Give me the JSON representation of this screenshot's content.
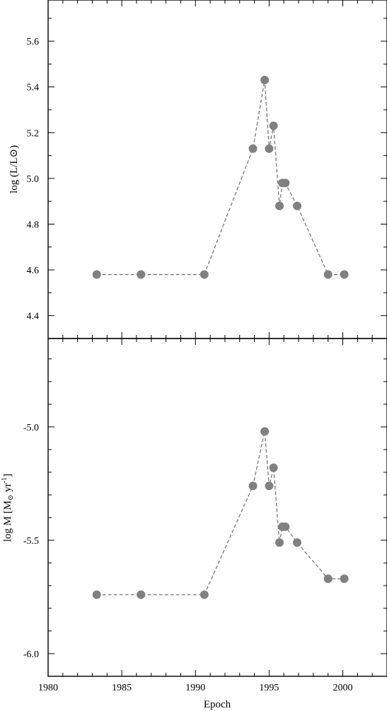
{
  "chart_data": [
    {
      "type": "scatter",
      "panel": "top",
      "x": [
        1983.3,
        1986.3,
        1990.6,
        1993.9,
        1994.7,
        1995.0,
        1995.3,
        1995.7,
        1995.9,
        1996.1,
        1996.9,
        1999.0,
        2000.1
      ],
      "series": [
        {
          "values": [
            4.58,
            4.58,
            4.58,
            5.13,
            5.43,
            5.13,
            5.23,
            4.88,
            4.98,
            4.98,
            4.88,
            4.58,
            4.58
          ]
        }
      ],
      "line_order": [
        0,
        1,
        2,
        3,
        4,
        5,
        6,
        7,
        8,
        9,
        10,
        11,
        12
      ],
      "ylabel": "log (L/L⊙)",
      "xlim": [
        1980,
        2003
      ],
      "ylim": [
        4.3,
        5.78
      ],
      "yticks": [
        4.4,
        4.6,
        4.8,
        5.0,
        5.2,
        5.4,
        5.6
      ],
      "ytick_labels": [
        "4.4",
        "4.6",
        "4.8",
        "5.0",
        "5.2",
        "5.4",
        "5.6"
      ],
      "grid": false,
      "line_style": "dashed",
      "marker_color": "#808080"
    },
    {
      "type": "scatter",
      "panel": "bottom",
      "x": [
        1983.3,
        1986.3,
        1990.6,
        1993.9,
        1994.7,
        1995.0,
        1995.3,
        1995.7,
        1995.9,
        1996.1,
        1996.9,
        1999.0,
        2000.1
      ],
      "series": [
        {
          "values": [
            -5.74,
            -5.74,
            -5.74,
            -5.26,
            -5.02,
            -5.26,
            -5.18,
            -5.51,
            -5.44,
            -5.44,
            -5.51,
            -5.67,
            -5.67
          ]
        }
      ],
      "ylabel_main": "log M [M",
      "ylabel_sub": "⊙",
      "ylabel_unit": " yr",
      "ylabel_sup": "-1",
      "ylabel_end": "]",
      "xlabel": "Epoch",
      "xlim": [
        1980,
        2003
      ],
      "ylim": [
        -6.1,
        -4.61
      ],
      "yticks": [
        -6.0,
        -5.5,
        -5.0
      ],
      "ytick_labels": [
        "-6.0",
        "-5.5",
        "-5.0"
      ],
      "xticks": [
        1980,
        1985,
        1990,
        1995,
        2000
      ],
      "xtick_labels": [
        "1980",
        "1985",
        "1990",
        "1995",
        "2000"
      ],
      "grid": false,
      "line_style": "dashed",
      "marker_color": "#808080"
    }
  ]
}
